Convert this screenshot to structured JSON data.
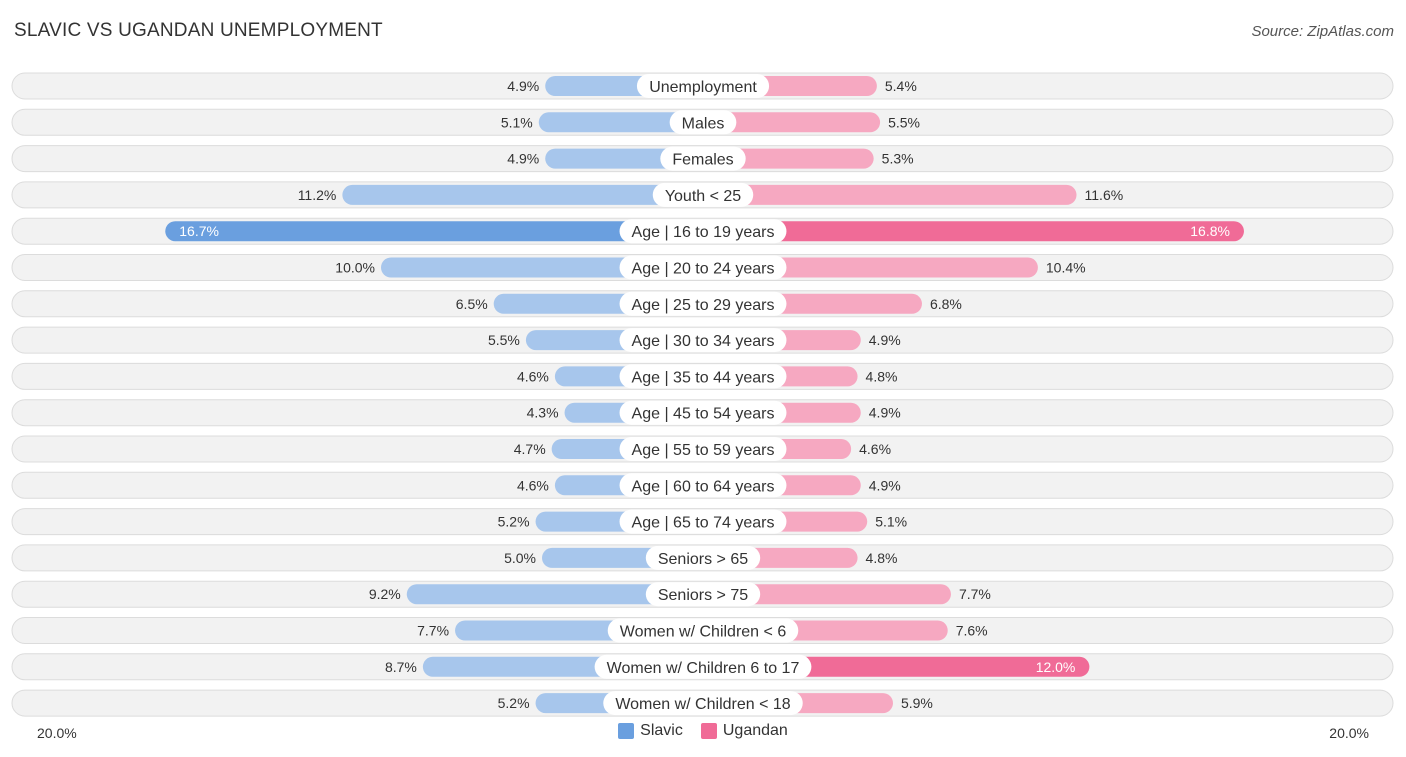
{
  "title": "SLAVIC VS UGANDAN UNEMPLOYMENT",
  "source": "Source: ZipAtlas.com",
  "colors": {
    "slavic_light": "#a7c6ec",
    "slavic_strong": "#6a9fdf",
    "ugandan_light": "#f6a8c1",
    "ugandan_strong": "#f06b97",
    "row_bg": "#f2f2f2",
    "row_border": "#dcdcdc"
  },
  "axis": {
    "left_label": "20.0%",
    "right_label": "20.0%",
    "max": 20.0
  },
  "legend": [
    {
      "name": "Slavic",
      "color": "#6a9fdf"
    },
    {
      "name": "Ugandan",
      "color": "#f06b97"
    }
  ],
  "chart_data": {
    "type": "bar",
    "orientation": "horizontal-diverging",
    "title": "SLAVIC VS UGANDAN UNEMPLOYMENT",
    "xlim": [
      -20,
      20
    ],
    "categories": [
      "Unemployment",
      "Males",
      "Females",
      "Youth < 25",
      "Age | 16 to 19 years",
      "Age | 20 to 24 years",
      "Age | 25 to 29 years",
      "Age | 30 to 34 years",
      "Age | 35 to 44 years",
      "Age | 45 to 54 years",
      "Age | 55 to 59 years",
      "Age | 60 to 64 years",
      "Age | 65 to 74 years",
      "Seniors > 65",
      "Seniors > 75",
      "Women w/ Children < 6",
      "Women w/ Children 6 to 17",
      "Women w/ Children < 18"
    ],
    "series": [
      {
        "name": "Slavic",
        "values": [
          4.9,
          5.1,
          4.9,
          11.2,
          16.7,
          10.0,
          6.5,
          5.5,
          4.6,
          4.3,
          4.7,
          4.6,
          5.2,
          5.0,
          9.2,
          7.7,
          8.7,
          5.2
        ]
      },
      {
        "name": "Ugandan",
        "values": [
          5.4,
          5.5,
          5.3,
          11.6,
          16.8,
          10.4,
          6.8,
          4.9,
          4.8,
          4.9,
          4.6,
          4.9,
          5.1,
          4.8,
          7.7,
          7.6,
          12.0,
          5.9
        ]
      }
    ],
    "labels_inside": {
      "Slavic": [
        false,
        false,
        false,
        false,
        true,
        false,
        false,
        false,
        false,
        false,
        false,
        false,
        false,
        false,
        false,
        false,
        false,
        false
      ],
      "Ugandan": [
        false,
        false,
        false,
        false,
        true,
        false,
        false,
        false,
        false,
        false,
        false,
        false,
        false,
        false,
        false,
        false,
        true,
        false
      ]
    }
  }
}
